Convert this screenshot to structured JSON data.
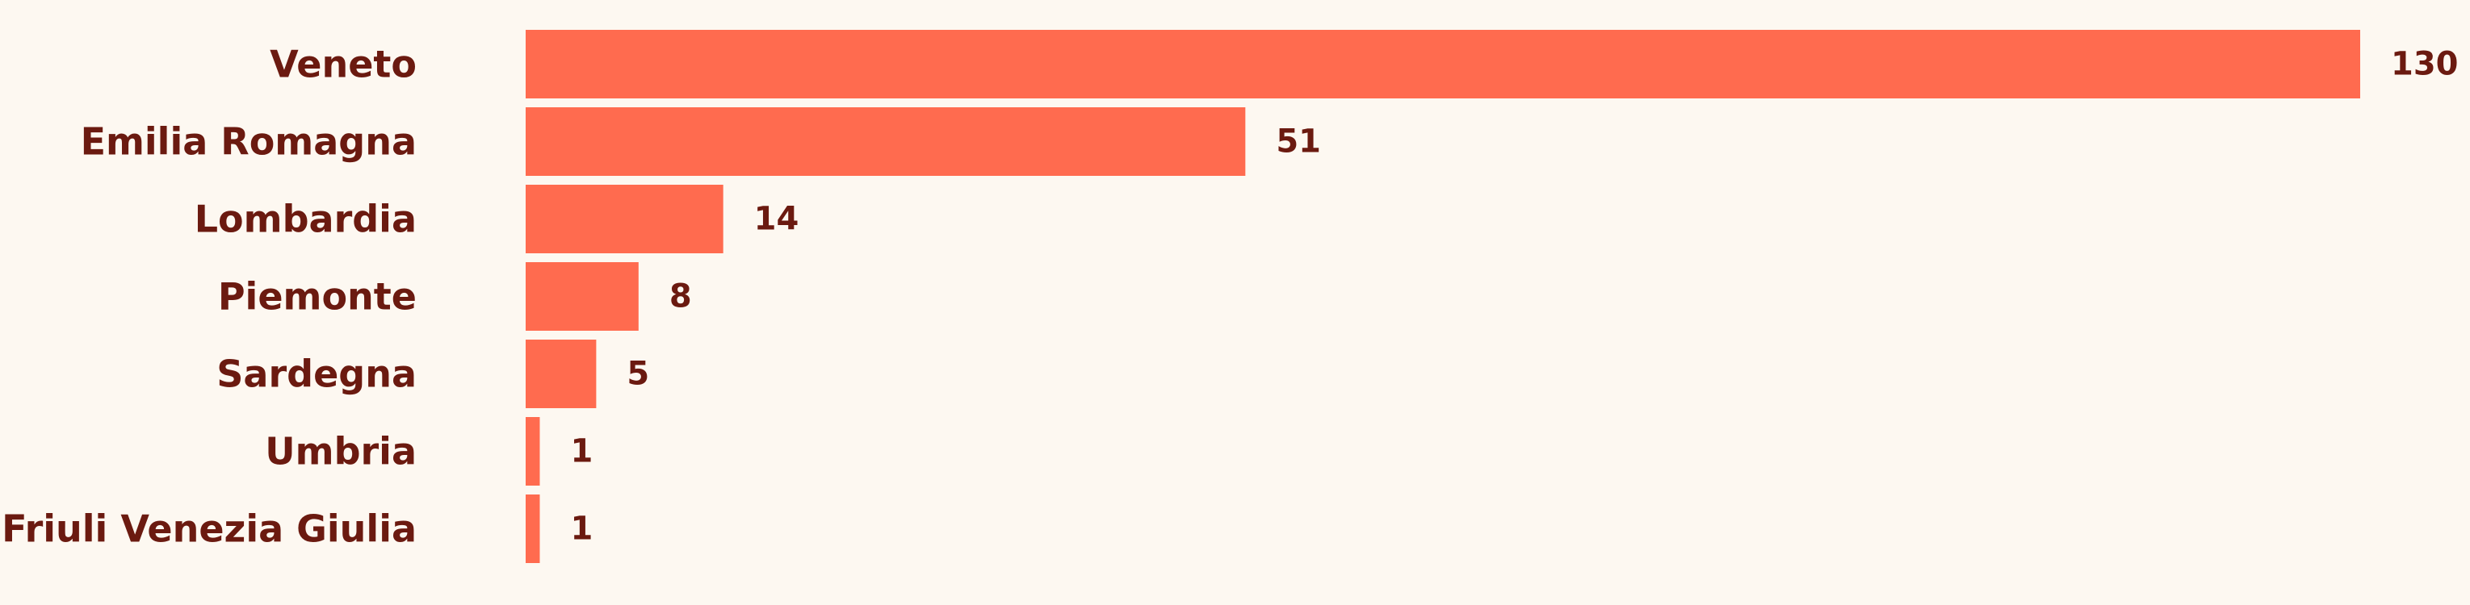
{
  "colors": {
    "background": "#fdf8f1",
    "bar": "#ff6b4f",
    "text": "#6b1a10"
  },
  "chart_data": {
    "type": "bar",
    "orientation": "horizontal",
    "categories": [
      "Veneto",
      "Emilia Romagna",
      "Lombardia",
      "Piemonte",
      "Sardegna",
      "Umbria",
      "Friuli Venezia Giulia"
    ],
    "values": [
      130,
      51,
      14,
      8,
      5,
      1,
      1
    ],
    "value_labels": [
      "130",
      "51",
      "14",
      "8",
      "5",
      "1",
      "1"
    ],
    "xlim": [
      0,
      130
    ],
    "grid": false,
    "legend": "none"
  }
}
